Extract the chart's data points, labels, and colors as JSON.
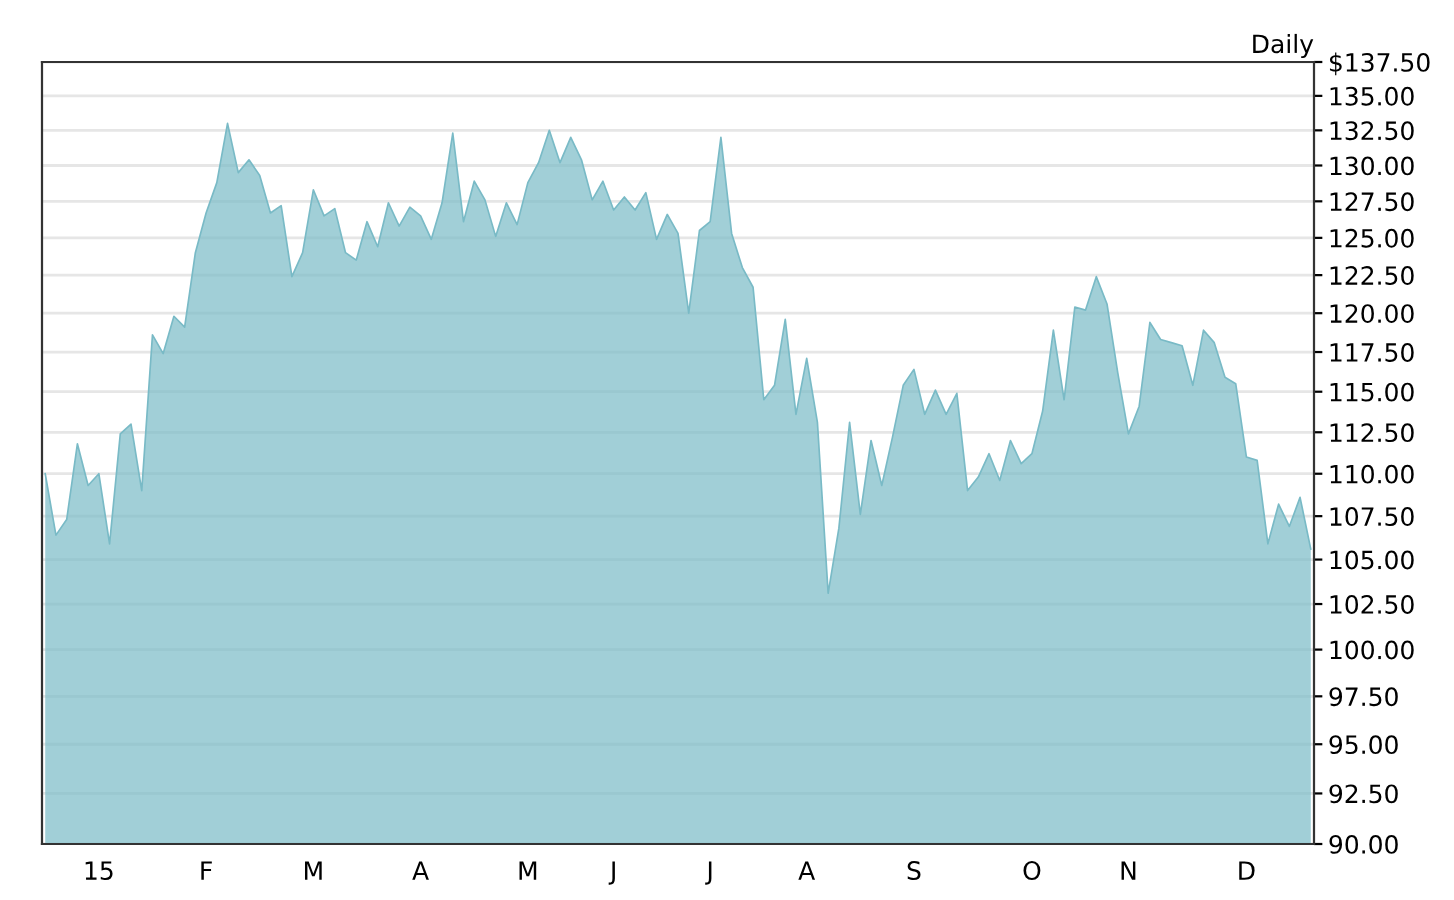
{
  "chart_data": {
    "type": "area",
    "annotations": [
      "Daily"
    ],
    "categories": [
      null,
      null,
      null,
      null,
      null,
      "15",
      null,
      null,
      null,
      null,
      null,
      null,
      null,
      null,
      null,
      "F",
      null,
      null,
      null,
      null,
      null,
      null,
      null,
      null,
      null,
      "M",
      null,
      null,
      null,
      null,
      null,
      null,
      null,
      null,
      null,
      "A",
      null,
      null,
      null,
      null,
      null,
      null,
      null,
      null,
      null,
      "M",
      null,
      null,
      null,
      null,
      null,
      null,
      null,
      "J",
      null,
      null,
      null,
      null,
      null,
      null,
      null,
      null,
      "J",
      null,
      null,
      null,
      null,
      null,
      null,
      null,
      null,
      "A",
      null,
      null,
      null,
      null,
      null,
      null,
      null,
      null,
      null,
      "S",
      null,
      null,
      null,
      null,
      null,
      null,
      null,
      null,
      null,
      null,
      "O",
      null,
      null,
      null,
      null,
      null,
      null,
      null,
      null,
      "N",
      null,
      null,
      null,
      null,
      null,
      null,
      null,
      null,
      null,
      null,
      "D",
      null,
      null,
      null,
      null,
      null,
      null
    ],
    "series": [
      {
        "color": "#79bac6",
        "values": [
          110.0,
          106.4,
          107.3,
          111.8,
          109.3,
          110.0,
          105.9,
          112.4,
          113.0,
          109.0,
          118.6,
          117.4,
          119.8,
          119.1,
          124.0,
          126.7,
          128.8,
          133.0,
          129.5,
          130.4,
          129.3,
          126.7,
          127.2,
          122.4,
          124.0,
          128.3,
          126.5,
          127.0,
          124.0,
          123.5,
          126.1,
          124.4,
          127.4,
          125.8,
          127.1,
          126.5,
          124.9,
          127.4,
          132.3,
          126.1,
          128.9,
          127.6,
          125.1,
          127.4,
          125.9,
          128.8,
          130.2,
          132.5,
          130.2,
          132.0,
          130.4,
          127.6,
          128.9,
          126.9,
          127.8,
          126.9,
          128.1,
          124.9,
          126.6,
          125.3,
          120.0,
          125.5,
          126.1,
          132.0,
          125.3,
          123.0,
          121.7,
          114.5,
          115.4,
          119.6,
          113.6,
          117.1,
          113.1,
          103.1,
          106.8,
          113.1,
          107.6,
          112.0,
          109.3,
          112.2,
          115.4,
          116.4,
          113.6,
          115.1,
          113.6,
          114.9,
          109.0,
          109.8,
          111.2,
          109.6,
          112.0,
          110.6,
          111.2,
          113.8,
          118.9,
          114.5,
          120.4,
          120.2,
          122.4,
          120.6,
          116.2,
          112.4,
          114.1,
          119.4,
          118.3,
          118.1,
          117.9,
          115.4,
          118.9,
          118.1,
          115.9,
          115.5,
          111.0,
          110.8,
          105.9,
          108.2,
          106.9,
          108.6,
          105.6
        ]
      }
    ],
    "log": "y",
    "ylim": [
      90,
      137.5
    ],
    "yticks": [
      {
        "value": 90,
        "label": "90.00"
      },
      {
        "value": 92.5,
        "label": "92.50"
      },
      {
        "value": 95,
        "label": "95.00"
      },
      {
        "value": 97.5,
        "label": "97.50"
      },
      {
        "value": 100,
        "label": "100.00"
      },
      {
        "value": 102.5,
        "label": "102.50"
      },
      {
        "value": 105,
        "label": "105.00"
      },
      {
        "value": 107.5,
        "label": "107.50"
      },
      {
        "value": 110,
        "label": "110.00"
      },
      {
        "value": 112.5,
        "label": "112.50"
      },
      {
        "value": 115,
        "label": "115.00"
      },
      {
        "value": 117.5,
        "label": "117.50"
      },
      {
        "value": 120,
        "label": "120.00"
      },
      {
        "value": 122.5,
        "label": "122.50"
      },
      {
        "value": 125,
        "label": "125.00"
      },
      {
        "value": 127.5,
        "label": "127.50"
      },
      {
        "value": 130,
        "label": "130.00"
      },
      {
        "value": 132.5,
        "label": "132.50"
      },
      {
        "value": 135,
        "label": "135.00"
      },
      {
        "value": 137.5,
        "label": "$137.50"
      }
    ],
    "grid": "y"
  }
}
